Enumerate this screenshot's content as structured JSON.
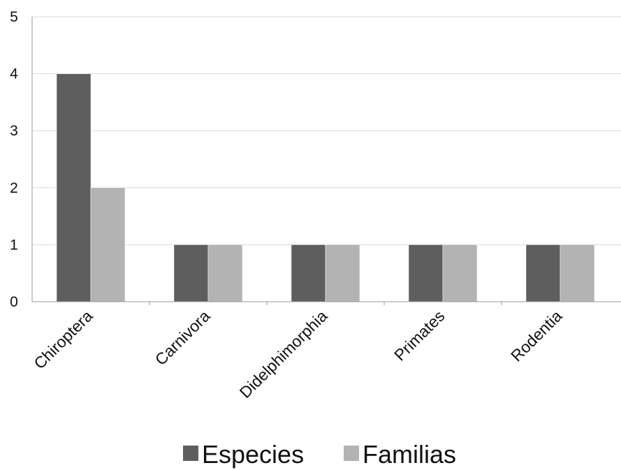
{
  "chart_data": {
    "type": "bar",
    "categories": [
      "Chiroptera",
      "Carnivora",
      "Didelphimorphia",
      "Primates",
      "Rodentia"
    ],
    "series": [
      {
        "name": "Especies",
        "values": [
          4,
          1,
          1,
          1,
          1
        ],
        "color": "#5e5e5e"
      },
      {
        "name": "Familias",
        "values": [
          2,
          1,
          1,
          1,
          1
        ],
        "color": "#b3b3b3"
      }
    ],
    "ylim": [
      0,
      5
    ],
    "yticks": [
      "0",
      "1",
      "2",
      "3",
      "4",
      "5"
    ],
    "grid": true,
    "legend": "bottom",
    "title": "",
    "xlabel": "",
    "ylabel": ""
  }
}
